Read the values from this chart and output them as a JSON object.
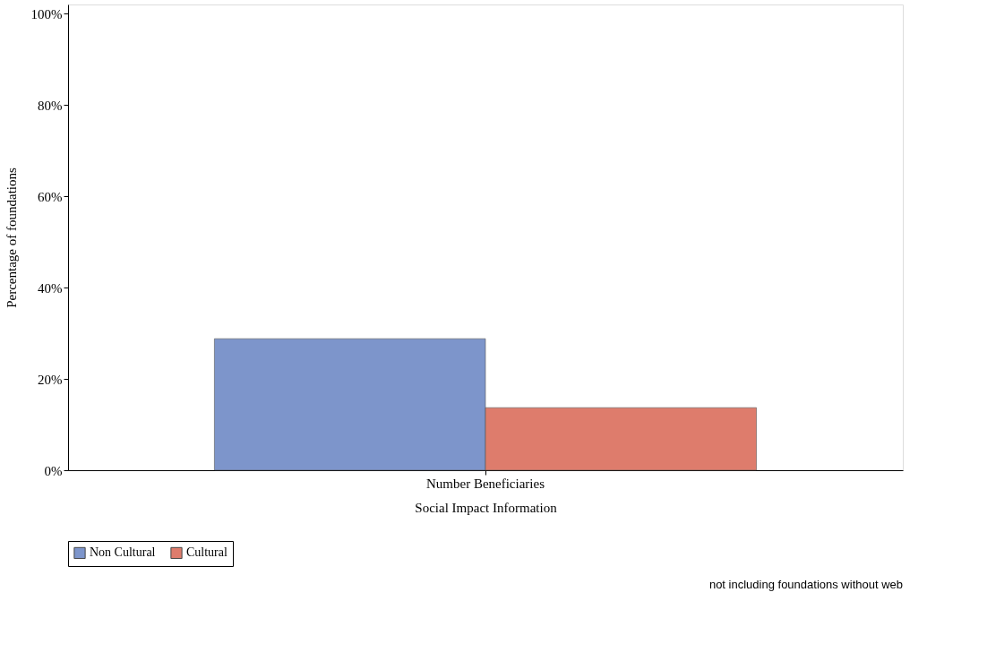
{
  "chart_data": {
    "type": "bar",
    "categories": [
      "Number Beneficiaries"
    ],
    "xlabel": "Social Impact Information",
    "ylabel": "Percentage of foundations",
    "series": [
      {
        "name": "Non Cultural",
        "color": "#7d95cb",
        "values": [
          28.8
        ]
      },
      {
        "name": "Cultural",
        "color": "#de7c6c",
        "values": [
          13.7
        ]
      }
    ],
    "ylim": [
      0,
      102
    ],
    "yticks": [
      {
        "value": 0,
        "label": "0%"
      },
      {
        "value": 20,
        "label": "20%"
      },
      {
        "value": 40,
        "label": "40%"
      },
      {
        "value": 60,
        "label": "60%"
      },
      {
        "value": 80,
        "label": "80%"
      },
      {
        "value": 100,
        "label": "100%"
      }
    ],
    "grid": false,
    "legend": "bottom",
    "annotations": [
      "not including foundations without web"
    ]
  }
}
